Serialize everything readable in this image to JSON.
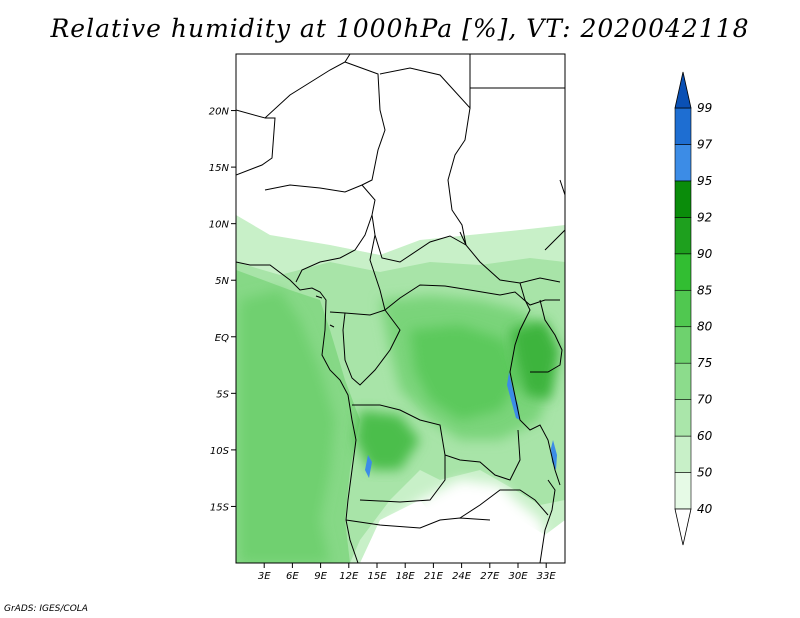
{
  "title": "Relative humidity at 1000hPa [%], VT: 2020042118",
  "credit": "GrADS: IGES/COLA",
  "map": {
    "lon_range": [
      0,
      35
    ],
    "lat_range": [
      -20,
      25
    ],
    "lon_ticks": [
      {
        "value": 3,
        "label": "3E"
      },
      {
        "value": 6,
        "label": "6E"
      },
      {
        "value": 9,
        "label": "9E"
      },
      {
        "value": 12,
        "label": "12E"
      },
      {
        "value": 15,
        "label": "15E"
      },
      {
        "value": 18,
        "label": "18E"
      },
      {
        "value": 21,
        "label": "21E"
      },
      {
        "value": 24,
        "label": "24E"
      },
      {
        "value": 27,
        "label": "27E"
      },
      {
        "value": 30,
        "label": "30E"
      },
      {
        "value": 33,
        "label": "33E"
      }
    ],
    "lat_ticks": [
      {
        "value": 20,
        "label": "20N"
      },
      {
        "value": 15,
        "label": "15N"
      },
      {
        "value": 10,
        "label": "10N"
      },
      {
        "value": 5,
        "label": "5N"
      },
      {
        "value": 0,
        "label": "EQ"
      },
      {
        "value": -5,
        "label": "5S"
      },
      {
        "value": -10,
        "label": "10S"
      },
      {
        "value": -15,
        "label": "15S"
      }
    ]
  },
  "colorbar": {
    "labels": [
      "40",
      "50",
      "60",
      "70",
      "75",
      "80",
      "85",
      "90",
      "92",
      "95",
      "97",
      "99"
    ],
    "colors": [
      "#ffffff",
      "#e6fae6",
      "#c8f0c8",
      "#aae6aa",
      "#8cdc8c",
      "#6ed26e",
      "#50c850",
      "#32be32",
      "#1ea01e",
      "#0a8c0a",
      "#3c8ce6",
      "#1e6ed2",
      "#0a50b4"
    ]
  }
}
